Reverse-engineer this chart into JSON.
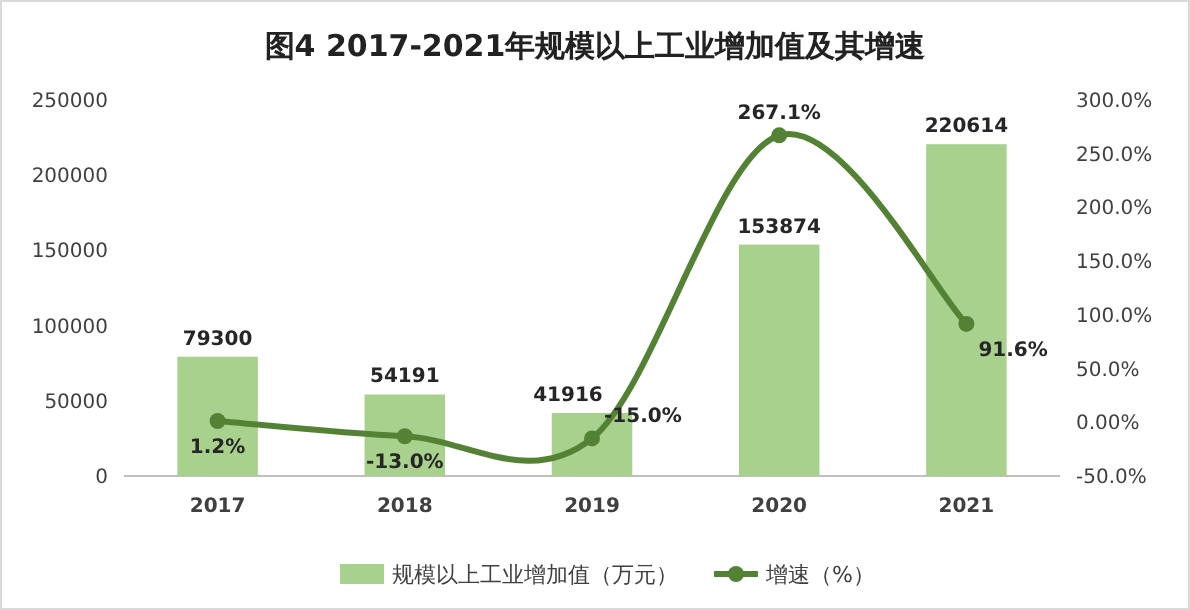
{
  "chart_data": {
    "type": "bar",
    "title": "图4  2017-2021年规模以上工业增加值及其增速",
    "categories": [
      "2017",
      "2018",
      "2019",
      "2020",
      "2021"
    ],
    "series": [
      {
        "name": "规模以上工业增加值（万元）",
        "type": "bar",
        "color": "#a9d18e",
        "values": [
          79300,
          54191,
          41916,
          153874,
          220614
        ],
        "value_labels": [
          "79300",
          "54191",
          "41916",
          "153874",
          "220614"
        ]
      },
      {
        "name": "增速（%）",
        "type": "line",
        "axis": "y2",
        "color": "#548235",
        "marker": "circle",
        "values": [
          1.2,
          -13.0,
          -15.0,
          267.1,
          91.6
        ],
        "value_labels": [
          "1.2%",
          "-13.0%",
          "-15.0%",
          "267.1%",
          "91.6%"
        ]
      }
    ],
    "ylim": [
      0,
      250000
    ],
    "yticks": [
      0,
      50000,
      100000,
      150000,
      200000,
      250000
    ],
    "y2lim": [
      -50,
      300
    ],
    "y2ticks": [
      {
        "value": -50,
        "label": "-50.0%"
      },
      {
        "value": 0,
        "label": "0.00%"
      },
      {
        "value": 50,
        "label": "50.0%"
      },
      {
        "value": 100,
        "label": "100.0%"
      },
      {
        "value": 150,
        "label": "150.0%"
      },
      {
        "value": 200,
        "label": "200.0%"
      },
      {
        "value": 250,
        "label": "250.0%"
      },
      {
        "value": 300,
        "label": "300.0%"
      }
    ],
    "legend": "bottom"
  }
}
